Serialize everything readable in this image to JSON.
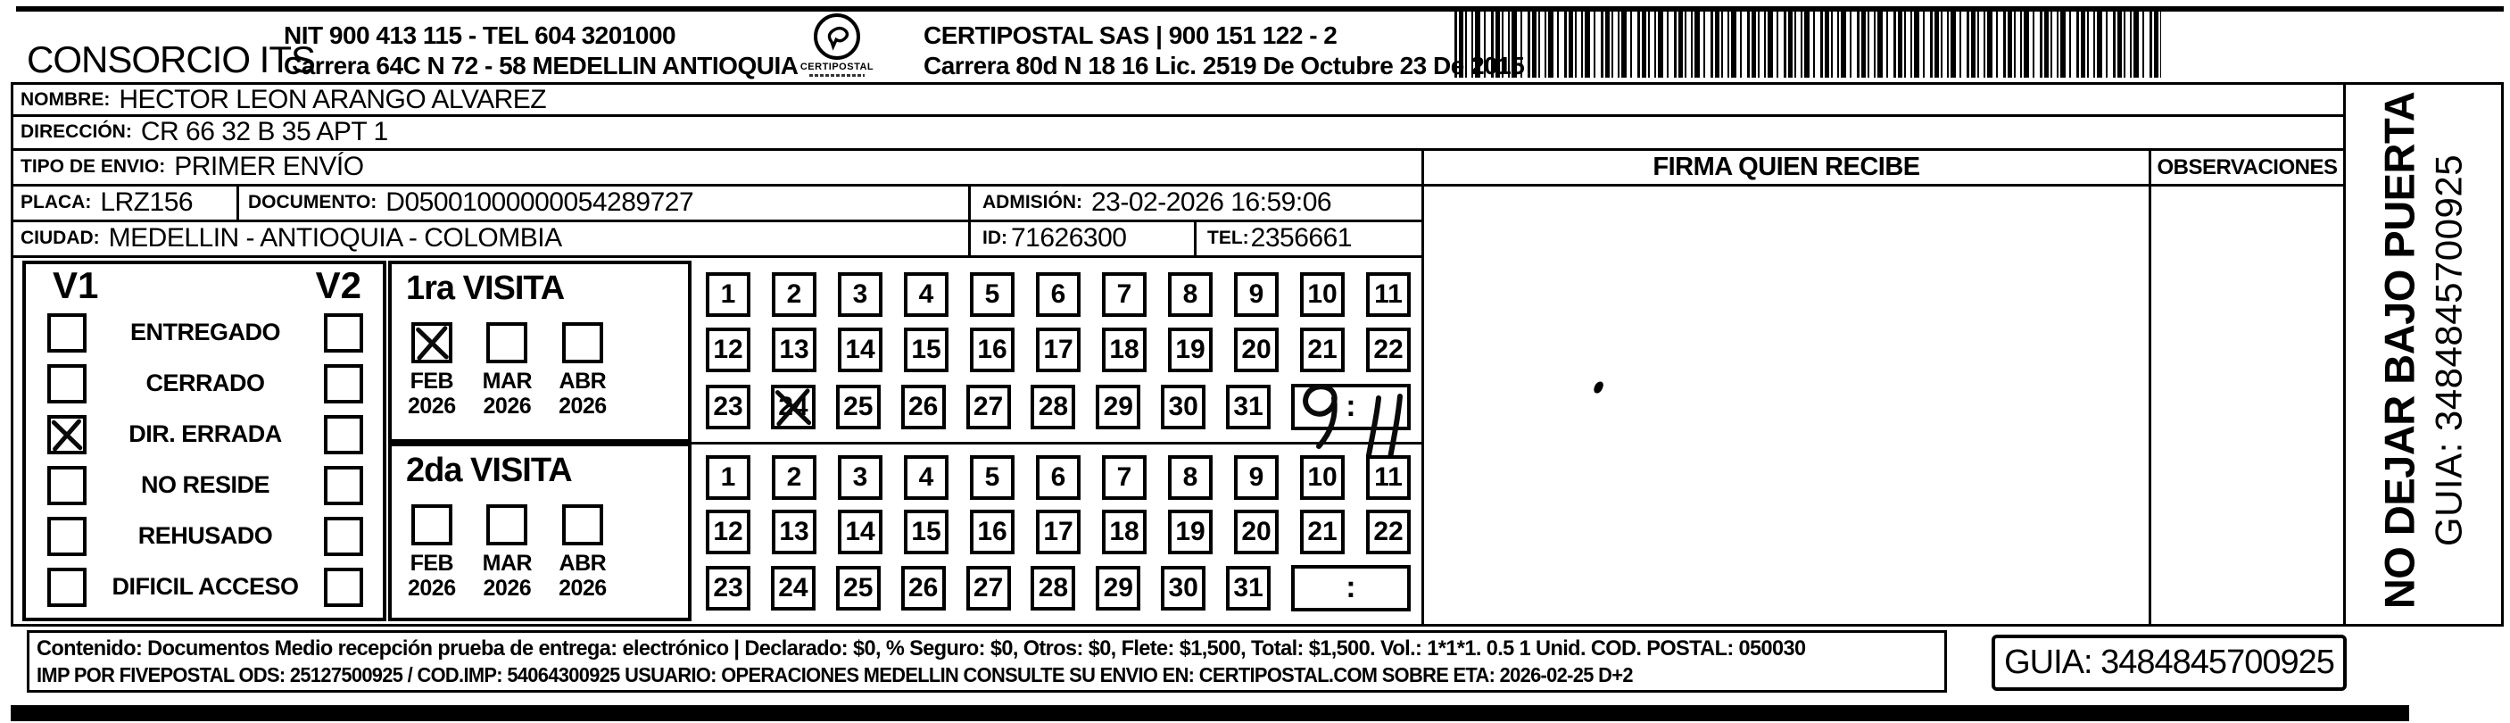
{
  "colors": {
    "ink": "#000000",
    "paper": "#ffffff"
  },
  "header": {
    "company": "CONSORCIO ITS",
    "company_info_line1": "NIT 900 413 115 - TEL 604 3201000",
    "company_info_line2": "Carrera 64C N 72 - 58 MEDELLIN ANTIOQUIA",
    "logo_caption": "CERTIPOSTAL",
    "postal_line1": "CERTIPOSTAL SAS | 900 151 122 - 2",
    "postal_line2": "Carrera 80d N 18 16  Lic. 2519 De Octubre 23 De 2015"
  },
  "recipient": {
    "nombre_label": "NOMBRE:",
    "nombre": "HECTOR LEON ARANGO ALVAREZ",
    "direccion_label": "DIRECCIÓN:",
    "direccion": "CR 66 32 B 35 APT 1",
    "tipo_envio_label": "TIPO DE ENVIO:",
    "tipo_envio": "PRIMER ENVÍO",
    "placa_label": "PLACA:",
    "placa": "LRZ156",
    "documento_label": "DOCUMENTO:",
    "documento": "D05001000000054289727",
    "admision_label": "ADMISIÓN:",
    "admision": "23-02-2026 16:59:06",
    "ciudad_label": "CIUDAD:",
    "ciudad": "MEDELLIN - ANTIOQUIA - COLOMBIA",
    "id_label": "ID:",
    "id": "71626300",
    "tel_label": "TEL:",
    "tel": "2356661"
  },
  "status_panel": {
    "col1_header": "V1",
    "col2_header": "V2",
    "rows": [
      {
        "label": "ENTREGADO",
        "v1_checked": false,
        "v2_checked": false
      },
      {
        "label": "CERRADO",
        "v1_checked": false,
        "v2_checked": false
      },
      {
        "label": "DIR. ERRADA",
        "v1_checked": true,
        "v2_checked": false
      },
      {
        "label": "NO RESIDE",
        "v1_checked": false,
        "v2_checked": false
      },
      {
        "label": "REHUSADO",
        "v1_checked": false,
        "v2_checked": false
      },
      {
        "label": "DIFICIL ACCESO",
        "v1_checked": false,
        "v2_checked": false
      }
    ]
  },
  "visits": {
    "day_numbers": [
      1,
      2,
      3,
      4,
      5,
      6,
      7,
      8,
      9,
      10,
      11,
      12,
      13,
      14,
      15,
      16,
      17,
      18,
      19,
      20,
      21,
      22,
      23,
      24,
      25,
      26,
      27,
      28,
      29,
      30,
      31
    ],
    "first": {
      "title": "1ra VISITA",
      "months": [
        {
          "name": "FEB",
          "year": "2026"
        },
        {
          "name": "MAR",
          "year": "2026"
        },
        {
          "name": "ABR",
          "year": "2026"
        }
      ],
      "checked_month": "FEB",
      "crossed_day": 24,
      "time_separator": ":",
      "handwritten_time": {
        "hours": "9",
        "minutes": "11"
      }
    },
    "second": {
      "title": "2da VISITA",
      "months": [
        {
          "name": "FEB",
          "year": "2026"
        },
        {
          "name": "MAR",
          "year": "2026"
        },
        {
          "name": "ABR",
          "year": "2026"
        }
      ],
      "checked_month": null,
      "crossed_day": null,
      "time_separator": ":",
      "handwritten_time": null
    }
  },
  "signature": {
    "firma_label": "FIRMA QUIEN RECIBE",
    "observaciones_label": "OBSERVACIONES"
  },
  "side_strip": {
    "warning": "NO DEJAR BAJO PUERTA",
    "guia_vertical": "GUIA: 3484845700925"
  },
  "footer": {
    "line1": "Contenido: Documentos Medio recepción prueba de entrega: electrónico | Declarado: $0, % Seguro: $0, Otros: $0, Flete: $1,500, Total: $1,500. Vol.: 1*1*1. 0.5 1 Unid. COD. POSTAL: 050030",
    "line2": "IMP POR FIVEPOSTAL ODS: 25127500925 / COD.IMP: 54064300925 USUARIO: OPERACIONES MEDELLIN CONSULTE SU ENVIO EN: CERTIPOSTAL.COM SOBRE ETA: 2026-02-25 D+2",
    "guia": "GUIA: 3484845700925"
  }
}
